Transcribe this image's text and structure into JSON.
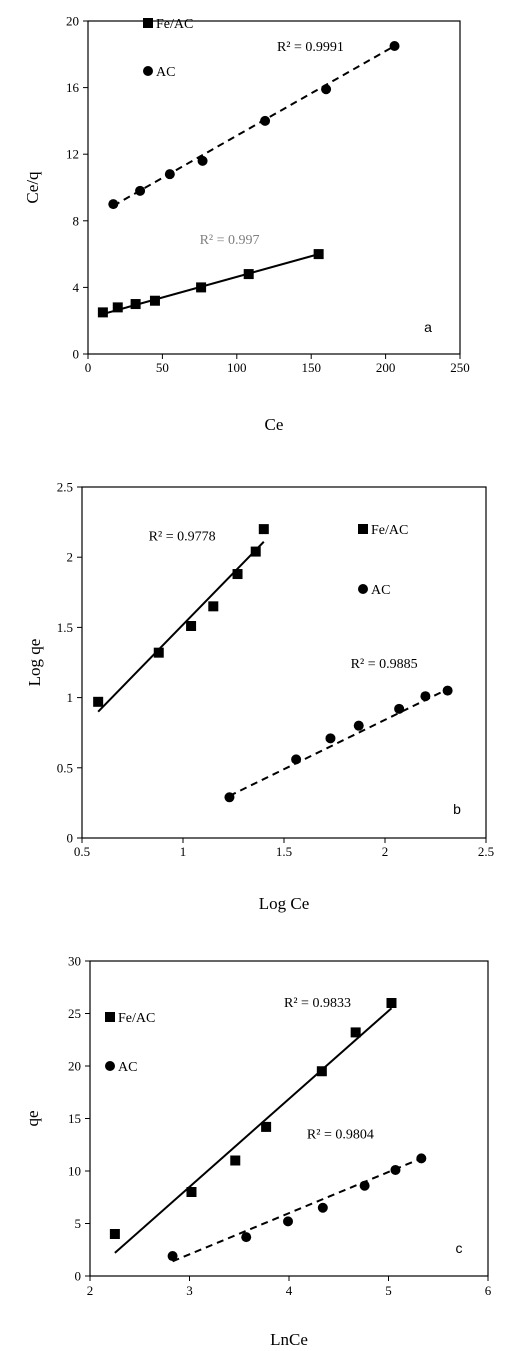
{
  "chart_data": [
    {
      "type": "scatter",
      "panel_label": "a",
      "xlabel": "Ce",
      "ylabel": "Ce/q",
      "xlim": [
        0,
        250
      ],
      "ylim": [
        0,
        20
      ],
      "xticks": [
        0,
        50,
        100,
        150,
        200,
        250
      ],
      "yticks": [
        0,
        4,
        8,
        12,
        16,
        20
      ],
      "x_tick_labels": [
        "0",
        "50",
        "100",
        "150",
        "200",
        "250"
      ],
      "y_tick_labels": [
        "0",
        "4",
        "8",
        "12",
        "16",
        "20"
      ],
      "grid": false,
      "legend": {
        "position": "top-left",
        "entries": [
          "Fe/AC",
          "AC"
        ]
      },
      "series": [
        {
          "name": "Fe/AC",
          "marker": "square",
          "line": "solid",
          "x": [
            10,
            20,
            32,
            45,
            76,
            108,
            155
          ],
          "y": [
            2.5,
            2.8,
            3.0,
            3.2,
            4.0,
            4.8,
            6.0
          ],
          "fit": {
            "x": [
              10,
              155
            ],
            "y": [
              2.4,
              6.0
            ]
          },
          "r2_label": "R² = 0.997",
          "r2_pos": {
            "x": 75,
            "y": 6.6
          },
          "label_color": "#7f7f7f"
        },
        {
          "name": "AC",
          "marker": "circle",
          "line": "dashed",
          "x": [
            17,
            35,
            55,
            77,
            119,
            160,
            206
          ],
          "y": [
            9.0,
            9.8,
            10.8,
            11.6,
            14.0,
            15.9,
            18.5
          ],
          "fit": {
            "x": [
              17,
              206
            ],
            "y": [
              8.9,
              18.5
            ]
          },
          "r2_label": "R² = 0.9991",
          "r2_pos": {
            "x": 127,
            "y": 18.2
          },
          "label_color": "#000000"
        }
      ]
    },
    {
      "type": "scatter",
      "panel_label": "b",
      "xlabel": "Log Ce",
      "ylabel": "Log qe",
      "xlim": [
        0.5,
        2.5
      ],
      "ylim": [
        0,
        2.5
      ],
      "xticks": [
        0.5,
        1,
        1.5,
        2,
        2.5
      ],
      "yticks": [
        0,
        0.5,
        1,
        1.5,
        2,
        2.5
      ],
      "x_tick_labels": [
        "0.5",
        "1",
        "1.5",
        "2",
        "2.5"
      ],
      "y_tick_labels": [
        "0",
        "0.5",
        "1",
        "1.5",
        "2",
        "2.5"
      ],
      "grid": false,
      "legend": {
        "position": "top-right",
        "entries": [
          "Fe/AC",
          "AC"
        ]
      },
      "series": [
        {
          "name": "Fe/AC",
          "marker": "square",
          "line": "solid",
          "x": [
            0.58,
            0.88,
            1.04,
            1.15,
            1.27,
            1.36,
            1.4
          ],
          "y": [
            0.97,
            1.32,
            1.51,
            1.65,
            1.88,
            2.04,
            2.2
          ],
          "fit": {
            "x": [
              0.58,
              1.4
            ],
            "y": [
              0.9,
              2.11
            ]
          },
          "r2_label": "R² = 0.9778",
          "r2_pos": {
            "x": 0.83,
            "y": 2.12
          },
          "label_color": "#000000"
        },
        {
          "name": "AC",
          "marker": "circle",
          "line": "dashed",
          "x": [
            1.23,
            1.56,
            1.73,
            1.87,
            2.07,
            2.2,
            2.31
          ],
          "y": [
            0.29,
            0.56,
            0.71,
            0.8,
            0.92,
            1.01,
            1.05
          ],
          "fit": {
            "x": [
              1.23,
              2.31
            ],
            "y": [
              0.3,
              1.06
            ]
          },
          "r2_label": "R² = 0.9885",
          "r2_pos": {
            "x": 1.83,
            "y": 1.21
          },
          "label_color": "#000000"
        }
      ]
    },
    {
      "type": "scatter",
      "panel_label": "c",
      "xlabel": "LnCe",
      "ylabel": "qe",
      "xlim": [
        2,
        6
      ],
      "ylim": [
        0,
        30
      ],
      "xticks": [
        2,
        3,
        4,
        5,
        6
      ],
      "yticks": [
        0,
        5,
        10,
        15,
        20,
        25,
        30
      ],
      "x_tick_labels": [
        "2",
        "3",
        "4",
        "5",
        "6"
      ],
      "y_tick_labels": [
        "0",
        "5",
        "10",
        "15",
        "20",
        "25",
        "30"
      ],
      "grid": false,
      "legend": {
        "position": "top-left",
        "entries": [
          "Fe/AC",
          "AC"
        ]
      },
      "series": [
        {
          "name": "Fe/AC",
          "marker": "square",
          "line": "solid",
          "x": [
            2.25,
            3.02,
            3.46,
            3.77,
            4.33,
            4.67,
            5.03
          ],
          "y": [
            4.0,
            8.0,
            11.0,
            14.2,
            19.5,
            23.2,
            26.0
          ],
          "fit": {
            "x": [
              2.25,
              5.03
            ],
            "y": [
              2.2,
              25.5
            ]
          },
          "r2_label": "R² = 0.9833",
          "r2_pos": {
            "x": 3.95,
            "y": 25.6
          },
          "label_color": "#000000"
        },
        {
          "name": "AC",
          "marker": "circle",
          "line": "dashed",
          "x": [
            2.83,
            3.57,
            3.99,
            4.34,
            4.76,
            5.07,
            5.33
          ],
          "y": [
            1.9,
            3.7,
            5.2,
            6.5,
            8.6,
            10.1,
            11.2
          ],
          "fit": {
            "x": [
              2.83,
              5.33
            ],
            "y": [
              1.4,
              11.2
            ]
          },
          "r2_label": "R² = 0.9804",
          "r2_pos": {
            "x": 4.18,
            "y": 13.1
          },
          "label_color": "#000000"
        }
      ]
    }
  ]
}
